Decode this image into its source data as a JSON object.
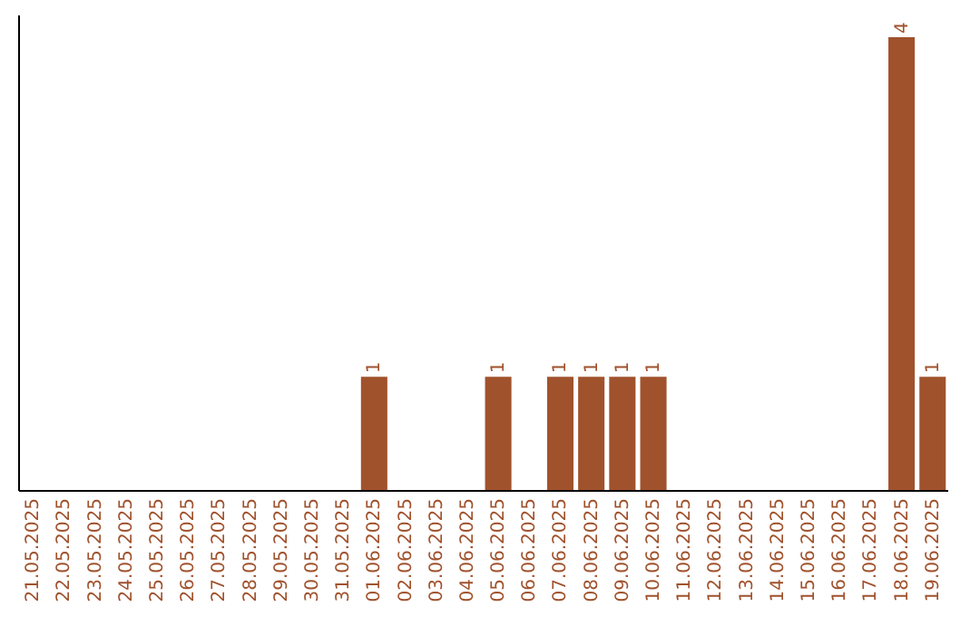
{
  "chart_data": {
    "type": "bar",
    "categories": [
      "21.05.2025",
      "22.05.2025",
      "23.05.2025",
      "24.05.2025",
      "25.05.2025",
      "26.05.2025",
      "27.05.2025",
      "28.05.2025",
      "29.05.2025",
      "30.05.2025",
      "31.05.2025",
      "01.06.2025",
      "02.06.2025",
      "03.06.2025",
      "04.06.2025",
      "05.06.2025",
      "06.06.2025",
      "07.06.2025",
      "08.06.2025",
      "09.06.2025",
      "10.06.2025",
      "11.06.2025",
      "12.06.2025",
      "13.06.2025",
      "14.06.2025",
      "15.06.2025",
      "16.06.2025",
      "17.06.2025",
      "18.06.2025",
      "19.06.2025"
    ],
    "values": [
      0,
      0,
      0,
      0,
      0,
      0,
      0,
      0,
      0,
      0,
      0,
      1,
      0,
      0,
      0,
      1,
      0,
      1,
      1,
      1,
      1,
      0,
      0,
      0,
      0,
      0,
      0,
      0,
      4,
      1
    ],
    "value_labels": [
      null,
      null,
      null,
      null,
      null,
      null,
      null,
      null,
      null,
      null,
      null,
      "1",
      null,
      null,
      null,
      "1",
      null,
      "1",
      "1",
      "1",
      "1",
      null,
      null,
      null,
      null,
      null,
      null,
      null,
      "4",
      "1"
    ],
    "color": "#a0522d",
    "ylim": [
      0,
      4.2
    ],
    "tick_labels": "x",
    "grid": false
  }
}
